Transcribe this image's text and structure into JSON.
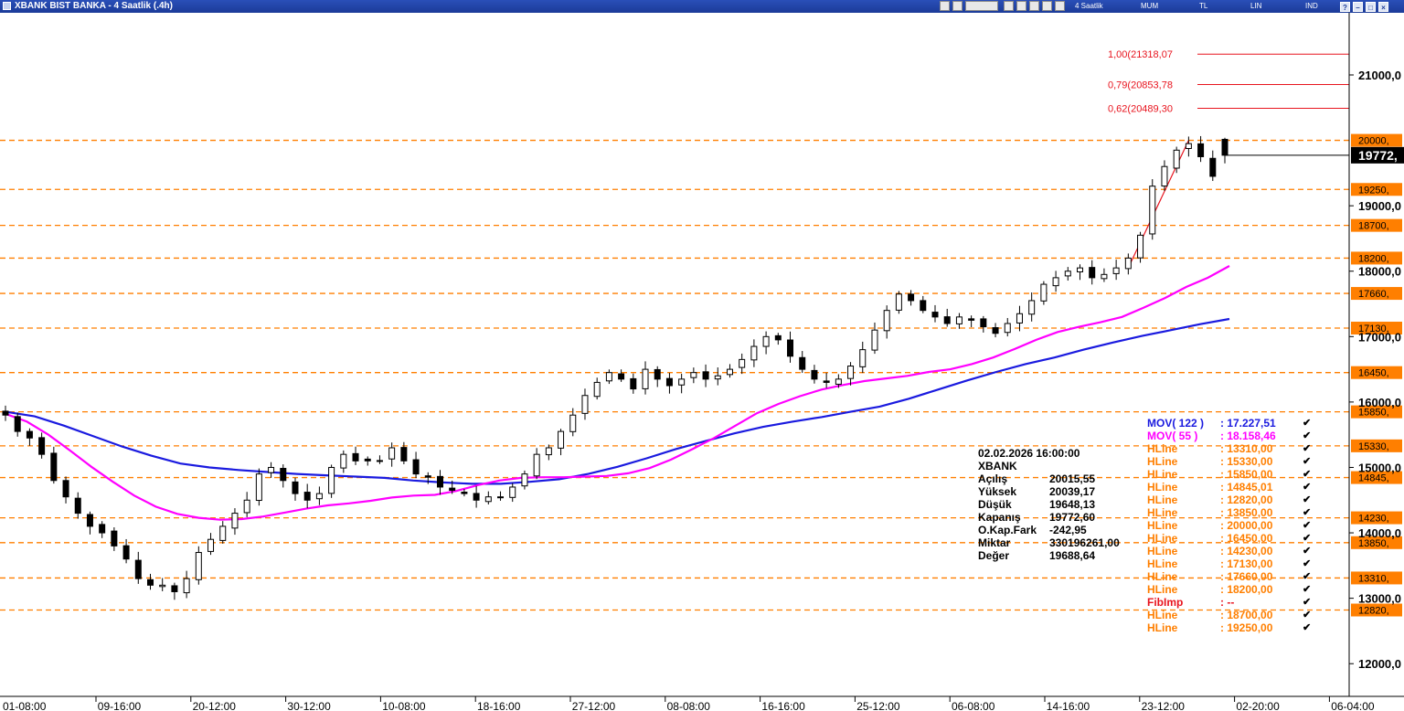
{
  "window": {
    "title": "XBANK BIST BANKA - 4 Saatlik (.4h)",
    "toolbar_labels": [
      "4 Saatlik",
      "MUM",
      "TL",
      "LIN",
      "IND"
    ]
  },
  "colors": {
    "mov122": "#1a1adf",
    "mov55": "#ff00ff",
    "hline": "#ff7f00",
    "fib": "#e8141e",
    "candle_up": "#ffffff",
    "candle_down": "#000000"
  },
  "info": {
    "datetime": "02.02.2026  16:00:00",
    "symbol": "XBANK",
    "rows": [
      {
        "label": "Açılış",
        "value": "20015,55"
      },
      {
        "label": "Yüksek",
        "value": "20039,17"
      },
      {
        "label": "Düşük",
        "value": "19648,13"
      },
      {
        "label": "Kapanış",
        "value": "19772,60"
      },
      {
        "label": "O.Kap.Fark",
        "value": "-242,95"
      },
      {
        "label": "Miktar",
        "value": "330196261,00"
      },
      {
        "label": "Değer",
        "value": "19688,64"
      }
    ]
  },
  "legend": [
    {
      "name": "MOV( 122 )",
      "value": ": 17.227,51",
      "color": "#1a1adf"
    },
    {
      "name": "MOV( 55 )",
      "value": ": 18.158,46",
      "color": "#ff00ff"
    },
    {
      "name": "HLine",
      "value": ": 13310,00",
      "color": "#ff7f00"
    },
    {
      "name": "HLine",
      "value": ": 15330,00",
      "color": "#ff7f00"
    },
    {
      "name": "HLine",
      "value": ": 15850,00",
      "color": "#ff7f00"
    },
    {
      "name": "HLine",
      "value": ": 14845,01",
      "color": "#ff7f00"
    },
    {
      "name": "HLine",
      "value": ": 12820,00",
      "color": "#ff7f00"
    },
    {
      "name": "HLine",
      "value": ": 13850,00",
      "color": "#ff7f00"
    },
    {
      "name": "HLine",
      "value": ": 20000,00",
      "color": "#ff7f00"
    },
    {
      "name": "HLine",
      "value": ": 16450,00",
      "color": "#ff7f00"
    },
    {
      "name": "HLine",
      "value": ": 14230,00",
      "color": "#ff7f00"
    },
    {
      "name": "HLine",
      "value": ": 17130,00",
      "color": "#ff7f00"
    },
    {
      "name": "HLine",
      "value": ": 17660,00",
      "color": "#ff7f00"
    },
    {
      "name": "HLine",
      "value": ": 18200,00",
      "color": "#ff7f00"
    },
    {
      "name": "FibImp",
      "value": ": --",
      "color": "#e8141e"
    },
    {
      "name": "HLine",
      "value": ": 18700,00",
      "color": "#ff7f00"
    },
    {
      "name": "HLine",
      "value": ": 19250,00",
      "color": "#ff7f00"
    }
  ],
  "check_mark": "✔",
  "chart_data": {
    "type": "candlestick",
    "symbol": "XBANK",
    "timeframe": "4 Saatlik",
    "ylim": [
      11500,
      21950
    ],
    "x_tick_labels": [
      "01-08:00",
      "09-16:00",
      "20-12:00",
      "30-12:00",
      "10-08:00",
      "18-16:00",
      "27-12:00",
      "08-08:00",
      "16-16:00",
      "25-12:00",
      "06-08:00",
      "14-16:00",
      "23-12:00",
      "02-20:00",
      "06-04:00"
    ],
    "y_ticks": [
      {
        "value": 21000,
        "label": "21000,0"
      },
      {
        "value": 19000,
        "label": "19000,0"
      },
      {
        "value": 18000,
        "label": "18000,0"
      },
      {
        "value": 17000,
        "label": "17000,0"
      },
      {
        "value": 16000,
        "label": "16000,0"
      },
      {
        "value": 15000,
        "label": "15000,0"
      },
      {
        "value": 14000,
        "label": "14000,0"
      },
      {
        "value": 13000,
        "label": "13000,0"
      },
      {
        "value": 12000,
        "label": "12000,0"
      }
    ],
    "hlines": [
      {
        "value": 20000,
        "label": "20000,"
      },
      {
        "value": 19250,
        "label": "19250,"
      },
      {
        "value": 18700,
        "label": "18700,"
      },
      {
        "value": 18200,
        "label": "18200,"
      },
      {
        "value": 17660,
        "label": "17660,"
      },
      {
        "value": 17130,
        "label": "17130,"
      },
      {
        "value": 16450,
        "label": "16450,"
      },
      {
        "value": 15850,
        "label": "15850,"
      },
      {
        "value": 15330,
        "label": "15330,"
      },
      {
        "value": 14845,
        "label": "14845,"
      },
      {
        "value": 14230,
        "label": "14230,"
      },
      {
        "value": 13850,
        "label": "13850,"
      },
      {
        "value": 13310,
        "label": "13310,"
      },
      {
        "value": 12820,
        "label": "12820,"
      }
    ],
    "last_price": {
      "value": 19772.6,
      "label": "19772,"
    },
    "fib_levels": [
      {
        "value": 21318.07,
        "label": "1,00(21318,07"
      },
      {
        "value": 20853.78,
        "label": "0,79(20853,78"
      },
      {
        "value": 20489.3,
        "label": "0,62(20489,30"
      }
    ],
    "close_path": [
      15800,
      15550,
      15450,
      15200,
      14800,
      14550,
      14300,
      14100,
      14000,
      13800,
      13600,
      13300,
      13200,
      13200,
      13100,
      13300,
      13700,
      13900,
      14100,
      14300,
      14500,
      14900,
      15000,
      14800,
      14600,
      14500,
      14600,
      15000,
      15200,
      15100,
      15100,
      15100,
      15300,
      15100,
      14900,
      14850,
      14700,
      14650,
      14600,
      14500,
      14550,
      14550,
      14700,
      14900,
      15200,
      15300,
      15550,
      15800,
      16100,
      16300,
      16450,
      16350,
      16200,
      16500,
      16350,
      16250,
      16350,
      16450,
      16350,
      16400,
      16500,
      16650,
      16850,
      17000,
      16950,
      16700,
      16500,
      16350,
      16300,
      16350,
      16550,
      16800,
      17100,
      17400,
      17650,
      17550,
      17400,
      17300,
      17200,
      17300,
      17250,
      17150,
      17050,
      17200,
      17350,
      17550,
      17800,
      17900,
      18000,
      18050,
      17900,
      17950,
      18050,
      18200,
      18550,
      19300,
      19600,
      19850,
      19950,
      19750,
      19450,
      19772
    ],
    "mov55_path": [
      15820,
      15700,
      15500,
      15260,
      15010,
      14780,
      14570,
      14400,
      14290,
      14230,
      14200,
      14210,
      14250,
      14310,
      14370,
      14420,
      14450,
      14490,
      14540,
      14570,
      14580,
      14640,
      14730,
      14800,
      14840,
      14850,
      14850,
      14860,
      14870,
      14910,
      14990,
      15120,
      15280,
      15450,
      15640,
      15830,
      15970,
      16090,
      16190,
      16260,
      16320,
      16360,
      16400,
      16460,
      16500,
      16580,
      16680,
      16810,
      16950,
      17070,
      17150,
      17220,
      17300,
      17440,
      17590,
      17760,
      17900,
      18080
    ],
    "mov122_path": [
      15850,
      15780,
      15640,
      15480,
      15320,
      15180,
      15060,
      15000,
      14960,
      14930,
      14900,
      14880,
      14860,
      14840,
      14800,
      14770,
      14750,
      14750,
      14780,
      14820,
      14900,
      15010,
      15140,
      15280,
      15400,
      15520,
      15620,
      15700,
      15770,
      15850,
      15930,
      16050,
      16190,
      16330,
      16460,
      16580,
      16680,
      16800,
      16910,
      17010,
      17100,
      17190,
      17270
    ],
    "last_candle": {
      "open": 20015.55,
      "high": 20039.17,
      "low": 19648.13,
      "close": 19772.6
    }
  }
}
